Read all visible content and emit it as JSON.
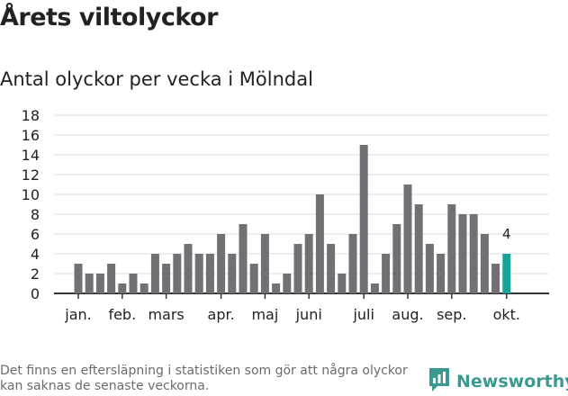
{
  "title": "Årets viltolyckor",
  "subtitle": "Antal olyckor per vecka i Mölndal",
  "footnote": "Det finns en eftersläpning i statistiken som gör att några olyckor kan saknas de senaste veckorna.",
  "brand": {
    "name": "Newsworthy",
    "icon": "newsworthy-logo-icon",
    "color": "#3a9a92"
  },
  "colors": {
    "bar": "#717074",
    "highlight": "#1aa39a",
    "grid": "#dddddd",
    "axis": "#333333"
  },
  "chart_data": {
    "type": "bar",
    "title": "Antal olyckor per vecka i Mölndal",
    "xlabel": "",
    "ylabel": "",
    "ylim": [
      0,
      18
    ],
    "yticks": [
      0,
      2,
      4,
      6,
      8,
      10,
      12,
      14,
      16,
      18
    ],
    "grid": true,
    "month_labels": [
      {
        "label": "jan.",
        "week_index": 0
      },
      {
        "label": "feb.",
        "week_index": 4
      },
      {
        "label": "mars",
        "week_index": 8
      },
      {
        "label": "apr.",
        "week_index": 13
      },
      {
        "label": "maj",
        "week_index": 17
      },
      {
        "label": "juni",
        "week_index": 21
      },
      {
        "label": "juli",
        "week_index": 26
      },
      {
        "label": "aug.",
        "week_index": 30
      },
      {
        "label": "sep.",
        "week_index": 34
      },
      {
        "label": "okt.",
        "week_index": 39
      }
    ],
    "values": [
      3,
      2,
      2,
      3,
      1,
      2,
      1,
      4,
      3,
      4,
      5,
      4,
      4,
      6,
      4,
      7,
      3,
      6,
      1,
      2,
      5,
      6,
      10,
      5,
      2,
      6,
      15,
      1,
      4,
      7,
      11,
      9,
      5,
      4,
      9,
      8,
      8,
      6,
      3,
      4
    ],
    "highlight_index": 39,
    "highlight_label": "4"
  }
}
